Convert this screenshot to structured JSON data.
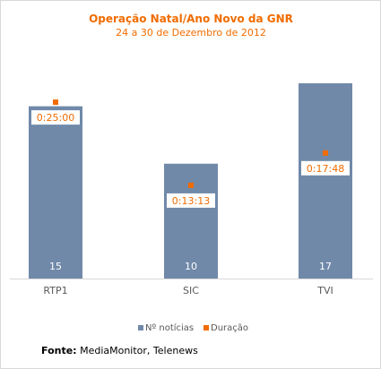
{
  "colors": {
    "bar": "#7089a9",
    "marker": "#f06c00",
    "title": "#f06c00",
    "axis": "#d9d9d9",
    "text": "#595959"
  },
  "chart_data": {
    "type": "bar",
    "title": "Operação Natal/Ano Novo da GNR",
    "subtitle": "24 a 30 de Dezembro de 2012",
    "categories": [
      "RTP1",
      "SIC",
      "TVI"
    ],
    "series": [
      {
        "name": "Nº notícias",
        "type": "bar",
        "values": [
          15,
          10,
          17
        ]
      },
      {
        "name": "Duração",
        "type": "scatter",
        "values": [
          "0:25:00",
          "0:13:13",
          "0:17:48"
        ]
      }
    ],
    "ylim": [
      0,
      17
    ],
    "grid": false,
    "legend": "bottom"
  },
  "source": {
    "label": "Fonte:",
    "text": " MediaMonitor, Telenews"
  }
}
